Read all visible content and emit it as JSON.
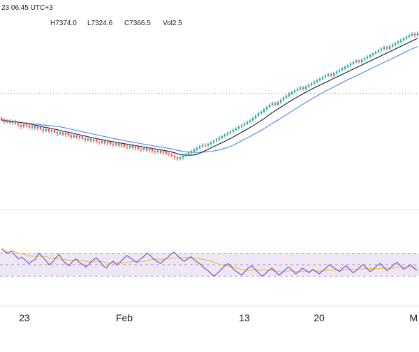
{
  "legend": {
    "time": "23 06:45 UTC+3",
    "high": "H7374.0",
    "low": "L7324.6",
    "close": "C7366.5",
    "vol": "Vol2.5"
  },
  "colors": {
    "up": "#26a69a",
    "down": "#ef5350",
    "ma_fast": "#131722",
    "ma_slow": "#5b8def",
    "level": "#26a69a",
    "rsi_line": "#7e57c2",
    "rsi_ma": "#e5c44c",
    "rsi_band": "#ede7f6"
  },
  "chart_data": [
    {
      "type": "candlestick",
      "title": "",
      "xlabel": "",
      "ylabel": "",
      "x_ticks": [
        "23",
        "Feb",
        "13",
        "20",
        "M"
      ],
      "grid": false,
      "legend": "top-left",
      "reference_level": "dotted horizontal line",
      "series": [
        {
          "name": "price",
          "candles": [
            [
              110,
              108,
              106,
              112
            ],
            [
              108,
              105,
              103,
              110
            ],
            [
              105,
              107,
              103,
              109
            ],
            [
              107,
              104,
              102,
              109
            ],
            [
              104,
              106,
              101,
              108
            ],
            [
              106,
              103,
              101,
              108
            ],
            [
              103,
              101,
              99,
              105
            ],
            [
              101,
              99,
              96,
              103
            ],
            [
              99,
              102,
              97,
              104
            ],
            [
              102,
              100,
              98,
              105
            ],
            [
              100,
              98,
              96,
              102
            ],
            [
              98,
              100,
              95,
              103
            ],
            [
              100,
              97,
              95,
              102
            ],
            [
              97,
              99,
              94,
              101
            ],
            [
              99,
              96,
              94,
              101
            ],
            [
              96,
              94,
              91,
              98
            ],
            [
              94,
              96,
              92,
              99
            ],
            [
              96,
              93,
              91,
              98
            ],
            [
              93,
              95,
              90,
              97
            ],
            [
              95,
              92,
              90,
              97
            ],
            [
              92,
              90,
              87,
              94
            ],
            [
              90,
              92,
              88,
              95
            ],
            [
              92,
              89,
              87,
              94
            ],
            [
              89,
              91,
              86,
              93
            ],
            [
              91,
              88,
              86,
              93
            ],
            [
              88,
              86,
              83,
              90
            ],
            [
              86,
              88,
              84,
              91
            ],
            [
              88,
              85,
              83,
              90
            ],
            [
              85,
              87,
              82,
              89
            ],
            [
              87,
              84,
              82,
              89
            ],
            [
              84,
              82,
              79,
              86
            ],
            [
              82,
              84,
              80,
              87
            ],
            [
              84,
              81,
              79,
              86
            ],
            [
              81,
              83,
              78,
              85
            ],
            [
              83,
              80,
              78,
              85
            ],
            [
              80,
              79,
              76,
              82
            ],
            [
              79,
              81,
              77,
              84
            ],
            [
              81,
              78,
              76,
              83
            ],
            [
              78,
              80,
              75,
              82
            ],
            [
              80,
              77,
              75,
              82
            ],
            [
              77,
              76,
              73,
              79
            ],
            [
              76,
              78,
              74,
              80
            ],
            [
              78,
              75,
              73,
              80
            ],
            [
              75,
              77,
              72,
              79
            ],
            [
              77,
              74,
              72,
              79
            ],
            [
              74,
              73,
              70,
              76
            ],
            [
              73,
              75,
              71,
              77
            ],
            [
              75,
              72,
              70,
              77
            ],
            [
              72,
              74,
              69,
              76
            ],
            [
              74,
              71,
              69,
              76
            ],
            [
              71,
              70,
              67,
              73
            ],
            [
              70,
              72,
              68,
              74
            ],
            [
              72,
              69,
              67,
              74
            ],
            [
              69,
              71,
              66,
              73
            ],
            [
              71,
              68,
              66,
              73
            ],
            [
              68,
              67,
              64,
              70
            ],
            [
              67,
              69,
              65,
              71
            ],
            [
              69,
              66,
              64,
              71
            ],
            [
              66,
              68,
              63,
              70
            ],
            [
              68,
              65,
              63,
              70
            ],
            [
              65,
              64,
              61,
              67
            ],
            [
              64,
              62,
              60,
              66
            ],
            [
              62,
              60,
              57,
              64
            ],
            [
              60,
              58,
              56,
              62
            ],
            [
              58,
              60,
              56,
              62
            ],
            [
              60,
              62,
              57,
              64
            ],
            [
              62,
              64,
              60,
              66
            ],
            [
              64,
              66,
              62,
              68
            ],
            [
              66,
              68,
              64,
              70
            ],
            [
              68,
              70,
              66,
              72
            ],
            [
              70,
              72,
              68,
              74
            ],
            [
              72,
              74,
              70,
              76
            ],
            [
              74,
              76,
              72,
              78
            ],
            [
              76,
              75,
              73,
              78
            ],
            [
              75,
              77,
              73,
              79
            ],
            [
              77,
              79,
              75,
              81
            ],
            [
              79,
              81,
              77,
              83
            ],
            [
              81,
              83,
              79,
              85
            ],
            [
              83,
              85,
              81,
              87
            ],
            [
              85,
              87,
              83,
              89
            ],
            [
              87,
              89,
              85,
              91
            ],
            [
              89,
              91,
              87,
              93
            ],
            [
              91,
              93,
              89,
              95
            ],
            [
              93,
              95,
              91,
              97
            ],
            [
              95,
              97,
              93,
              99
            ],
            [
              97,
              99,
              95,
              101
            ],
            [
              99,
              101,
              97,
              103
            ],
            [
              101,
              103,
              99,
              105
            ],
            [
              103,
              105,
              101,
              107
            ],
            [
              105,
              107,
              103,
              109
            ],
            [
              107,
              110,
              105,
              112
            ],
            [
              110,
              113,
              108,
              115
            ],
            [
              113,
              116,
              111,
              118
            ],
            [
              116,
              118,
              114,
              120
            ],
            [
              118,
              121,
              116,
              123
            ],
            [
              121,
              124,
              119,
              126
            ],
            [
              124,
              127,
              122,
              129
            ],
            [
              127,
              129,
              125,
              131
            ],
            [
              129,
              127,
              125,
              131
            ],
            [
              127,
              130,
              125,
              132
            ],
            [
              130,
              133,
              128,
              135
            ],
            [
              133,
              136,
              131,
              138
            ],
            [
              136,
              138,
              134,
              140
            ],
            [
              138,
              141,
              136,
              143
            ],
            [
              141,
              143,
              139,
              145
            ],
            [
              143,
              145,
              141,
              147
            ],
            [
              145,
              147,
              143,
              149
            ],
            [
              147,
              149,
              145,
              151
            ],
            [
              149,
              147,
              145,
              151
            ],
            [
              147,
              150,
              145,
              152
            ],
            [
              150,
              152,
              148,
              154
            ],
            [
              152,
              154,
              150,
              156
            ],
            [
              154,
              156,
              152,
              158
            ],
            [
              156,
              158,
              154,
              160
            ],
            [
              158,
              160,
              156,
              162
            ],
            [
              160,
              162,
              158,
              164
            ],
            [
              162,
              164,
              160,
              166
            ],
            [
              164,
              166,
              162,
              168
            ],
            [
              166,
              164,
              162,
              168
            ],
            [
              164,
              167,
              162,
              169
            ],
            [
              167,
              169,
              165,
              171
            ],
            [
              169,
              171,
              167,
              173
            ],
            [
              171,
              173,
              169,
              175
            ],
            [
              173,
              175,
              171,
              177
            ],
            [
              175,
              177,
              173,
              179
            ],
            [
              177,
              179,
              175,
              181
            ],
            [
              179,
              181,
              177,
              183
            ],
            [
              181,
              183,
              179,
              185
            ],
            [
              183,
              181,
              179,
              185
            ],
            [
              181,
              184,
              179,
              186
            ],
            [
              184,
              186,
              182,
              188
            ],
            [
              186,
              188,
              184,
              190
            ],
            [
              188,
              190,
              186,
              192
            ],
            [
              190,
              192,
              188,
              194
            ],
            [
              192,
              194,
              190,
              196
            ],
            [
              194,
              196,
              192,
              198
            ],
            [
              196,
              198,
              194,
              200
            ],
            [
              198,
              200,
              196,
              202
            ],
            [
              200,
              198,
              196,
              202
            ],
            [
              198,
              201,
              196,
              203
            ],
            [
              201,
              203,
              199,
              205
            ],
            [
              203,
              205,
              201,
              207
            ],
            [
              205,
              207,
              203,
              209
            ],
            [
              207,
              209,
              205,
              211
            ],
            [
              209,
              211,
              207,
              213
            ],
            [
              211,
              213,
              209,
              215
            ],
            [
              213,
              215,
              211,
              217
            ],
            [
              215,
              217,
              213,
              219
            ],
            [
              217,
              215,
              213,
              219
            ],
            [
              215,
              218,
              213,
              220
            ]
          ]
        },
        {
          "name": "",
          "role": "moving-average-fast"
        },
        {
          "name": "",
          "role": "moving-average-slow"
        }
      ]
    },
    {
      "type": "line",
      "title": "",
      "xlabel": "",
      "ylabel": "",
      "ylim": [
        0,
        100
      ],
      "band": [
        30,
        70
      ],
      "midline": 50,
      "x_ticks": [
        "23",
        "Feb",
        "13",
        "20",
        "M"
      ],
      "series": [
        {
          "name": "",
          "values": [
            78,
            72,
            70,
            74,
            66,
            60,
            63,
            58,
            52,
            56,
            60,
            70,
            64,
            58,
            50,
            54,
            62,
            68,
            58,
            52,
            48,
            56,
            60,
            54,
            50,
            46,
            52,
            58,
            62,
            56,
            48,
            44,
            52,
            56,
            50,
            54,
            60,
            66,
            62,
            58,
            54,
            60,
            64,
            70,
            66,
            60,
            56,
            52,
            58,
            62,
            68,
            72,
            66,
            60,
            56,
            60,
            64,
            58,
            54,
            50,
            44,
            40,
            34,
            30,
            36,
            42,
            48,
            52,
            46,
            40,
            36,
            32,
            38,
            44,
            48,
            42,
            36,
            30,
            34,
            40,
            44,
            38,
            32,
            36,
            42,
            46,
            40,
            34,
            38,
            44,
            40,
            36,
            42,
            38,
            34,
            40,
            44,
            50,
            46,
            42,
            38,
            44,
            48,
            42,
            36,
            40,
            46,
            50,
            44,
            38,
            42,
            48,
            52,
            46,
            40,
            44,
            50,
            54,
            48,
            42,
            46,
            50,
            44,
            40
          ]
        },
        {
          "name": "",
          "role": "moving-average"
        }
      ]
    }
  ]
}
